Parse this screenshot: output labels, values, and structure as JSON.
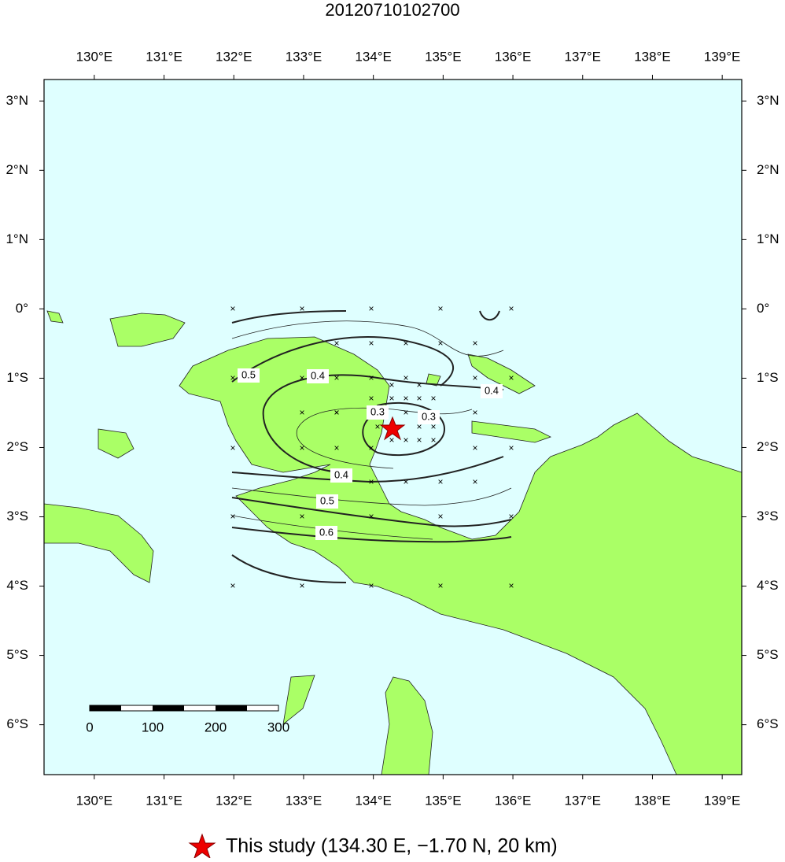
{
  "title": "20120710102700",
  "map": {
    "xlim": [
      129.28,
      139.28
    ],
    "ylim": [
      -6.72,
      3.31
    ],
    "xticks": [
      {
        "value": 130,
        "label": "130°E"
      },
      {
        "value": 131,
        "label": "131°E"
      },
      {
        "value": 132,
        "label": "132°E"
      },
      {
        "value": 133,
        "label": "133°E"
      },
      {
        "value": 134,
        "label": "134°E"
      },
      {
        "value": 135,
        "label": "135°E"
      },
      {
        "value": 136,
        "label": "136°E"
      },
      {
        "value": 137,
        "label": "137°E"
      },
      {
        "value": 138,
        "label": "138°E"
      },
      {
        "value": 139,
        "label": "139°E"
      }
    ],
    "yticks": [
      {
        "value": 3,
        "label": "3°N"
      },
      {
        "value": 2,
        "label": "2°N"
      },
      {
        "value": 1,
        "label": "1°N"
      },
      {
        "value": 0,
        "label": "0°"
      },
      {
        "value": -1,
        "label": "1°S"
      },
      {
        "value": -2,
        "label": "2°S"
      },
      {
        "value": -3,
        "label": "3°S"
      },
      {
        "value": -4,
        "label": "4°S"
      },
      {
        "value": -5,
        "label": "5°S"
      },
      {
        "value": -6,
        "label": "6°S"
      }
    ]
  },
  "contour_labels": [
    "0.5",
    "0.4",
    "0.3",
    "0.3",
    "0.4",
    "0.4",
    "0.5",
    "0.6"
  ],
  "scale_bar": {
    "labels": [
      "0",
      "100",
      "200",
      "300"
    ]
  },
  "legend": {
    "label": "This study (134.30 E, −1.70 N, 20 km)"
  }
}
